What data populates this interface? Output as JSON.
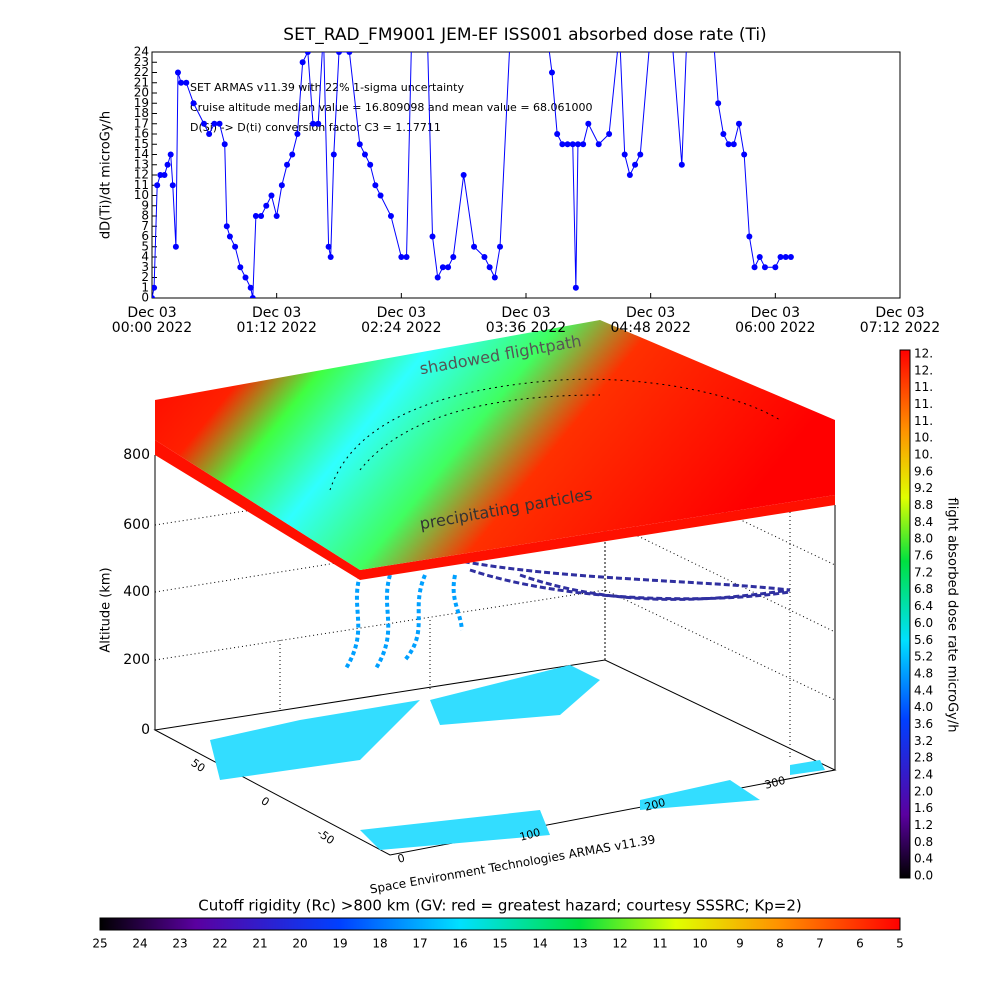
{
  "chart_data": {
    "type": "line",
    "title": "SET_RAD_FM9001  JEM-EF ISS001 absorbed dose rate (Ti)",
    "y_label": "dD(Ti)/dt microGy/h",
    "annotations": [
      "SET ARMAS v11.39 with 22% 1-sigma uncertainty",
      "Cruise altitude median value = 16.809098 and mean value = 68.061000",
      "D(Si) -> D(ti) conversion factor C3 = 1.17711"
    ],
    "color": "#0000ff",
    "x": [
      0.0,
      0.02,
      0.05,
      0.08,
      0.12,
      0.15,
      0.18,
      0.2,
      0.23,
      0.25,
      0.28,
      0.33,
      0.4,
      0.5,
      0.55,
      0.6,
      0.65,
      0.7,
      0.72,
      0.75,
      0.8,
      0.85,
      0.9,
      0.95,
      0.97,
      1.0,
      1.05,
      1.1,
      1.15,
      1.2,
      1.25,
      1.3,
      1.35,
      1.4,
      1.45,
      1.5,
      1.55,
      1.6,
      1.65,
      1.7,
      1.72,
      1.75,
      1.8,
      1.9,
      2.0,
      2.05,
      2.1,
      2.15,
      2.2,
      2.3,
      2.4,
      2.45,
      2.5,
      2.65,
      2.7,
      2.75,
      2.8,
      2.85,
      2.9,
      3.0,
      3.1,
      3.2,
      3.25,
      3.3,
      3.35,
      3.45,
      3.8,
      3.85,
      3.9,
      3.95,
      4.0,
      4.05,
      4.08,
      4.1,
      4.15,
      4.2,
      4.3,
      4.4,
      4.5,
      4.55,
      4.6,
      4.65,
      4.7,
      4.8,
      5.0,
      5.1,
      5.15,
      5.4,
      5.45,
      5.5,
      5.55,
      5.6,
      5.65,
      5.7,
      5.75,
      5.8,
      5.85,
      5.9,
      6.0,
      6.05,
      6.1,
      6.15
    ],
    "values": [
      0,
      1,
      11,
      12,
      12,
      13,
      14,
      11,
      5,
      22,
      21,
      21,
      19,
      17,
      16,
      17,
      17,
      15,
      7,
      6,
      5,
      3,
      2,
      1,
      0,
      8,
      8,
      9,
      10,
      8,
      11,
      13,
      14,
      16,
      23,
      24,
      17,
      17,
      26,
      5,
      4,
      14,
      24,
      24,
      15,
      14,
      13,
      11,
      10,
      8,
      4,
      4,
      26,
      26,
      6,
      2,
      3,
      3,
      4,
      12,
      5,
      4,
      3,
      2,
      5,
      26,
      26,
      22,
      16,
      15,
      15,
      15,
      1,
      15,
      15,
      17,
      15,
      16,
      26,
      14,
      12,
      13,
      14,
      26,
      26,
      13,
      26,
      26,
      19,
      16,
      15,
      15,
      17,
      14,
      6,
      3,
      4,
      3,
      3,
      4,
      4,
      4
    ],
    "xlim": [
      0,
      7.2
    ],
    "xticks": [
      {
        "value": 0,
        "label": "Dec 03\n00:00 2022"
      },
      {
        "value": 1.2,
        "label": "Dec 03\n01:12 2022"
      },
      {
        "value": 2.4,
        "label": "Dec 03\n02:24 2022"
      },
      {
        "value": 3.6,
        "label": "Dec 03\n03:36 2022"
      },
      {
        "value": 4.8,
        "label": "Dec 03\n04:48 2022"
      },
      {
        "value": 6.0,
        "label": "Dec 03\n06:00 2022"
      },
      {
        "value": 7.2,
        "label": "Dec 03\n07:12 2022"
      }
    ],
    "ylim": [
      0,
      24
    ],
    "yticks": [
      0,
      1,
      2,
      3,
      4,
      5,
      6,
      7,
      8,
      9,
      10,
      11,
      12,
      13,
      14,
      15,
      16,
      17,
      18,
      19,
      20,
      21,
      22,
      23,
      24
    ]
  },
  "plot3d": {
    "z_label": "Altitude (km)",
    "z_ticks": [
      "0",
      "200",
      "400",
      "600",
      "800"
    ],
    "lat_ticks": [
      "50",
      "0",
      "-50"
    ],
    "lon_ticks": [
      "0",
      "100",
      "200",
      "300"
    ],
    "top_label": "shadowed flightpath",
    "slab_label": "precipitating particles",
    "credit": "Space Environment Technologies ARMAS v11.39"
  },
  "dose_colorbar": {
    "label": "flight absorbed dose rate microGy/h",
    "tick_labels": [
      "0.0",
      "0.4",
      "0.8",
      "1.2",
      "1.6",
      "2.0",
      "2.4",
      "2.8",
      "3.2",
      "3.6",
      "4.0",
      "4.4",
      "4.8",
      "5.2",
      "5.6",
      "6.0",
      "6.4",
      "6.8",
      "7.2",
      "7.6",
      "8.0",
      "8.4",
      "8.8",
      "9.2",
      "9.6",
      "10.",
      "10.",
      "11.",
      "11.",
      "11.",
      "12.",
      "12."
    ]
  },
  "rigidity_colorbar": {
    "title": "Cutoff rigidity (Rc) >800 km (GV: red = greatest hazard; courtesy SSSRC; Kp=2)",
    "tick_labels": [
      "25",
      "24",
      "23",
      "22",
      "21",
      "20",
      "19",
      "18",
      "17",
      "16",
      "15",
      "14",
      "13",
      "12",
      "11",
      "10",
      "9",
      "8",
      "7",
      "6",
      "5"
    ]
  }
}
